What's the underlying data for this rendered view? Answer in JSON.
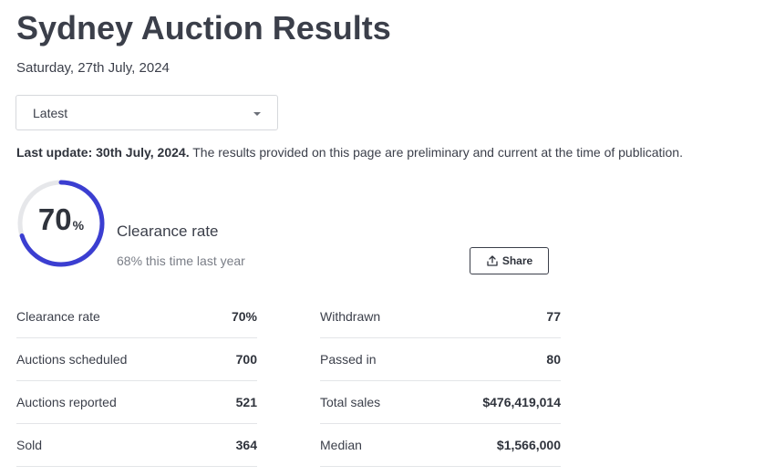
{
  "page": {
    "title": "Sydney Auction Results",
    "date": "Saturday, 27th July, 2024"
  },
  "filter": {
    "selected": "Latest"
  },
  "update": {
    "bold": "Last update: 30th July, 2024.",
    "text": " The results provided on this page are preliminary and current at the time of publication."
  },
  "clearance": {
    "value": "70",
    "percent_sign": "%",
    "fraction": 0.7,
    "label": "Clearance rate",
    "comparison": "68% this time last year",
    "ring_color": "#3b3ed1",
    "track_color": "#e6e7ea"
  },
  "share": {
    "label": "Share",
    "icon": "share-upload-icon"
  },
  "stats_left": [
    {
      "label": "Clearance rate",
      "value": "70%"
    },
    {
      "label": "Auctions scheduled",
      "value": "700"
    },
    {
      "label": "Auctions reported",
      "value": "521"
    },
    {
      "label": "Sold",
      "value": "364"
    }
  ],
  "stats_right": [
    {
      "label": "Withdrawn",
      "value": "77"
    },
    {
      "label": "Passed in",
      "value": "80"
    },
    {
      "label": "Total sales",
      "value": "$476,419,014"
    },
    {
      "label": "Median",
      "value": "$1,566,000"
    }
  ]
}
